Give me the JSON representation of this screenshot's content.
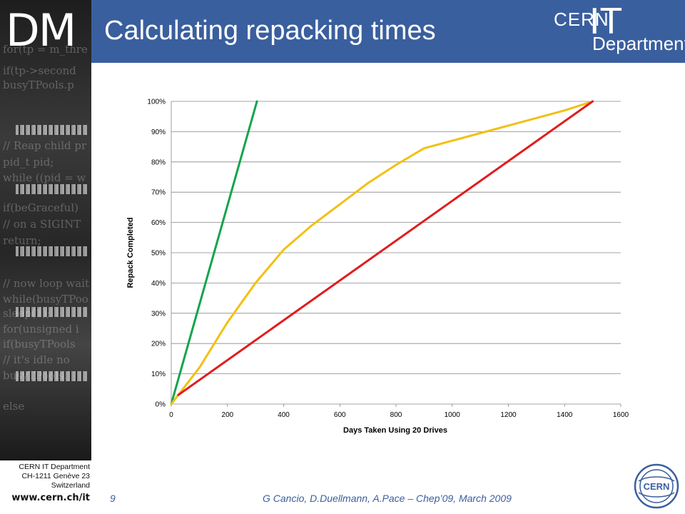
{
  "header": {
    "logo_text": "DM",
    "title": "Calculating repacking times",
    "brand_cern": "CERN",
    "brand_it": "IT",
    "brand_department": "Department"
  },
  "footer": {
    "dept_line1": "CERN IT Department",
    "dept_line2": "CH-1211 Genève 23",
    "dept_line3": "Switzerland",
    "url": "www.cern.ch/it",
    "page_number": "9",
    "credits": "G Cancio, D.Duellmann, A.Pace – Chep’09, March 2009",
    "badge_text": "CERN"
  },
  "chart_data": {
    "type": "line",
    "title": "",
    "xlabel": "Days Taken Using 20 Drives",
    "ylabel": "Repack Completed",
    "xlim": [
      0,
      1600
    ],
    "ylim": [
      0,
      100
    ],
    "x_ticks": [
      "0",
      "200",
      "400",
      "600",
      "800",
      "1000",
      "1200",
      "1400",
      "1600"
    ],
    "y_ticks": [
      "0%",
      "10%",
      "20%",
      "30%",
      "40%",
      "50%",
      "60%",
      "70%",
      "80%",
      "90%",
      "100%"
    ],
    "grid": true,
    "legend": "none",
    "series": [
      {
        "color": "#14a44d",
        "x": [
          0,
          305
        ],
        "y": [
          0,
          100
        ]
      },
      {
        "color": "#f2c012",
        "x": [
          0,
          100,
          200,
          300,
          400,
          500,
          600,
          700,
          800,
          900,
          1000,
          1100,
          1200,
          1300,
          1400,
          1500
        ],
        "y": [
          0,
          12,
          27,
          40,
          51,
          59,
          66,
          73,
          79,
          84.5,
          87,
          89.5,
          92,
          94.5,
          97,
          100
        ]
      },
      {
        "color": "#e01d1d",
        "x": [
          25,
          1500
        ],
        "y": [
          3,
          100
        ]
      }
    ]
  }
}
